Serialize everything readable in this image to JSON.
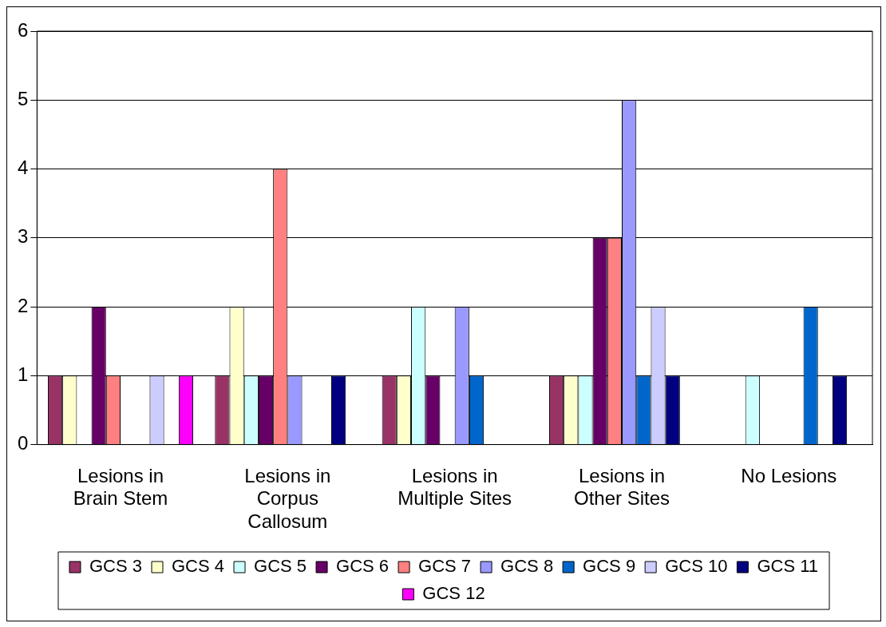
{
  "chart_data": {
    "type": "bar",
    "categories": [
      "Lesions in Brain Stem",
      "Lesions in Corpus Callosum",
      "Lesions in Multiple Sites",
      "Lesions in Other Sites",
      "No Lesions"
    ],
    "series": [
      {
        "name": "GCS 3",
        "color": "#993366",
        "values": [
          1,
          1,
          1,
          1,
          0
        ]
      },
      {
        "name": "GCS 4",
        "color": "#ffffcc",
        "values": [
          1,
          2,
          1,
          1,
          0
        ]
      },
      {
        "name": "GCS 5",
        "color": "#ccffff",
        "values": [
          0,
          1,
          2,
          1,
          1
        ]
      },
      {
        "name": "GCS 6",
        "color": "#660066",
        "values": [
          2,
          1,
          1,
          3,
          0
        ]
      },
      {
        "name": "GCS 7",
        "color": "#ff8080",
        "values": [
          1,
          4,
          0,
          3,
          0
        ]
      },
      {
        "name": "GCS 8",
        "color": "#9999ff",
        "values": [
          0,
          1,
          2,
          5,
          0
        ]
      },
      {
        "name": "GCS 9",
        "color": "#0066cc",
        "values": [
          0,
          0,
          1,
          1,
          2
        ]
      },
      {
        "name": "GCS 10",
        "color": "#ccccff",
        "values": [
          1,
          0,
          0,
          2,
          0
        ]
      },
      {
        "name": "GCS 11",
        "color": "#000080",
        "values": [
          0,
          1,
          0,
          1,
          1
        ]
      },
      {
        "name": "GCS 12",
        "color": "#ff00ff",
        "values": [
          1,
          0,
          0,
          0,
          0
        ]
      }
    ],
    "ylim": [
      0,
      6
    ],
    "yticks": [
      0,
      1,
      2,
      3,
      4,
      5,
      6
    ],
    "grid": "y",
    "legend": "bottom"
  }
}
